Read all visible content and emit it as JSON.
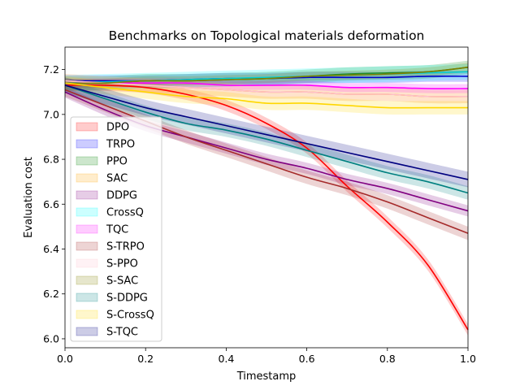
{
  "chart_data": {
    "type": "line",
    "title": "Benchmarks on Topological materials deformation",
    "xlabel": "Timestamp",
    "ylabel": "Evaluation cost",
    "xlim": [
      0.0,
      1.0
    ],
    "ylim": [
      5.96,
      7.3
    ],
    "xticks": [
      "0.0",
      "0.2",
      "0.4",
      "0.6",
      "0.8",
      "1.0"
    ],
    "xtick_values": [
      0.0,
      0.2,
      0.4,
      0.6,
      0.8,
      1.0
    ],
    "yticks": [
      "6.0",
      "6.2",
      "6.4",
      "6.6",
      "6.8",
      "7.0",
      "7.2"
    ],
    "ytick_values": [
      6.0,
      6.2,
      6.4,
      6.6,
      6.8,
      7.0,
      7.2
    ],
    "grid": false,
    "legend_position": "left",
    "x": [
      0.0,
      0.1,
      0.2,
      0.3,
      0.4,
      0.5,
      0.6,
      0.7,
      0.8,
      0.9,
      1.0
    ],
    "series": [
      {
        "name": "DPO",
        "color": "#ff0000",
        "band_color": "#ff0000",
        "values": [
          7.13,
          7.13,
          7.12,
          7.09,
          7.04,
          6.96,
          6.85,
          6.68,
          6.52,
          6.33,
          6.04
        ],
        "band": 0.025
      },
      {
        "name": "TRPO",
        "color": "#0000cc",
        "band_color": "#0000ff",
        "values": [
          7.15,
          7.15,
          7.15,
          7.155,
          7.16,
          7.16,
          7.165,
          7.165,
          7.165,
          7.17,
          7.17
        ],
        "band": 0.025
      },
      {
        "name": "PPO",
        "color": "#228b22",
        "band_color": "#008000",
        "values": [
          7.14,
          7.14,
          7.15,
          7.15,
          7.155,
          7.16,
          7.17,
          7.18,
          7.185,
          7.19,
          7.21
        ],
        "band": 0.03
      },
      {
        "name": "SAC",
        "color": "#ffa500",
        "band_color": "#ffa500",
        "values": [
          7.15,
          7.14,
          7.13,
          7.12,
          7.11,
          7.1,
          7.1,
          7.09,
          7.09,
          7.08,
          7.08
        ],
        "band": 0.03
      },
      {
        "name": "DDPG",
        "color": "#800080",
        "band_color": "#800080",
        "values": [
          7.1,
          7.02,
          6.95,
          6.9,
          6.85,
          6.8,
          6.76,
          6.71,
          6.67,
          6.62,
          6.57
        ],
        "band": 0.025
      },
      {
        "name": "CrossQ",
        "color": "#00ced1",
        "band_color": "#00ffff",
        "values": [
          7.14,
          7.145,
          7.15,
          7.155,
          7.16,
          7.165,
          7.17,
          7.175,
          7.18,
          7.185,
          7.19
        ],
        "band": 0.035
      },
      {
        "name": "TQC",
        "color": "#ff00ff",
        "band_color": "#ff00ff",
        "values": [
          7.14,
          7.14,
          7.14,
          7.14,
          7.13,
          7.13,
          7.13,
          7.12,
          7.12,
          7.115,
          7.115
        ],
        "band": 0.02
      },
      {
        "name": "S-TRPO",
        "color": "#a52a2a",
        "band_color": "#a52a2a",
        "values": [
          7.11,
          7.04,
          6.97,
          6.9,
          6.84,
          6.78,
          6.72,
          6.67,
          6.61,
          6.54,
          6.47
        ],
        "band": 0.03
      },
      {
        "name": "S-PPO",
        "color": "#ffc0cb",
        "band_color": "#ffc0cb",
        "values": [
          7.15,
          7.14,
          7.13,
          7.12,
          7.11,
          7.1,
          7.1,
          7.09,
          7.09,
          7.08,
          7.08
        ],
        "band": 0.03
      },
      {
        "name": "S-SAC",
        "color": "#808000",
        "band_color": "#808000",
        "values": [
          7.14,
          7.14,
          7.15,
          7.15,
          7.155,
          7.16,
          7.17,
          7.175,
          7.18,
          7.19,
          7.21
        ],
        "band": 0.02
      },
      {
        "name": "S-DDPG",
        "color": "#008080",
        "band_color": "#008080",
        "values": [
          7.13,
          7.07,
          7.01,
          6.96,
          6.93,
          6.89,
          6.84,
          6.79,
          6.74,
          6.7,
          6.65
        ],
        "band": 0.03
      },
      {
        "name": "S-CrossQ",
        "color": "#ffd700",
        "band_color": "#ffd700",
        "values": [
          7.14,
          7.12,
          7.1,
          7.08,
          7.07,
          7.05,
          7.05,
          7.04,
          7.03,
          7.03,
          7.03
        ],
        "band": 0.03
      },
      {
        "name": "S-TQC",
        "color": "#000080",
        "band_color": "#000080",
        "values": [
          7.13,
          7.08,
          7.03,
          6.99,
          6.95,
          6.91,
          6.87,
          6.83,
          6.79,
          6.75,
          6.71
        ],
        "band": 0.035
      }
    ]
  }
}
